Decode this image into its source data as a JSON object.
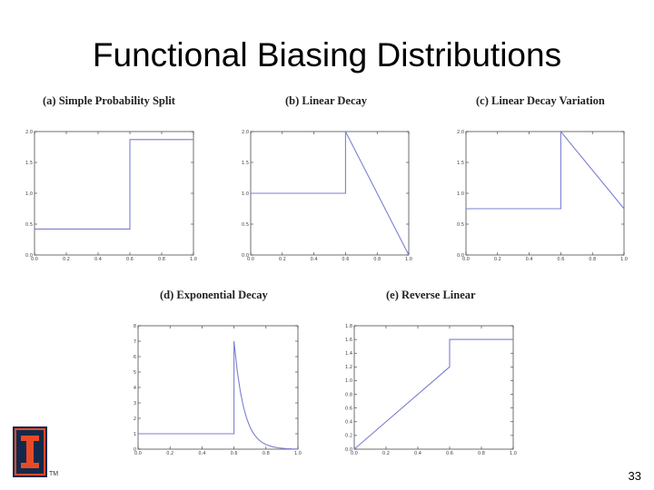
{
  "slide": {
    "title": "Functional Biasing Distributions",
    "page_number": "33",
    "tm": "TM"
  },
  "chart_data": [
    {
      "type": "line",
      "title": "(a) Simple Probability Split",
      "xlim": [
        0,
        1
      ],
      "ylim": [
        0,
        2
      ],
      "xticks": [
        0.0,
        0.2,
        0.4,
        0.6,
        0.8,
        1.0
      ],
      "yticks": [
        0.0,
        0.5,
        1.0,
        1.5,
        2.0
      ],
      "xtick_labels": [
        "0.0",
        "0.2",
        "0.4",
        "0.6",
        "0.8",
        "1.0"
      ],
      "ytick_labels": [
        "0.0",
        "0.5",
        "1.0",
        "1.5",
        "2.0"
      ],
      "series": [
        {
          "x": [
            0,
            0.6,
            0.6,
            1.0
          ],
          "y": [
            0.42,
            0.42,
            1.87,
            1.87
          ]
        }
      ]
    },
    {
      "type": "line",
      "title": "(b) Linear Decay",
      "xlim": [
        0,
        1
      ],
      "ylim": [
        0,
        2
      ],
      "xticks": [
        0.0,
        0.2,
        0.4,
        0.6,
        0.8,
        1.0
      ],
      "yticks": [
        0.0,
        0.5,
        1.0,
        1.5,
        2.0
      ],
      "xtick_labels": [
        "0.0",
        "0.2",
        "0.4",
        "0.6",
        "0.8",
        "1.0"
      ],
      "ytick_labels": [
        "0.0",
        "0.5",
        "1.0",
        "1.5",
        "2.0"
      ],
      "series": [
        {
          "x": [
            0,
            0.6,
            0.6,
            1.0
          ],
          "y": [
            1.0,
            1.0,
            2.0,
            0.0
          ]
        }
      ]
    },
    {
      "type": "line",
      "title": "(c) Linear Decay Variation",
      "xlim": [
        0,
        1
      ],
      "ylim": [
        0,
        2
      ],
      "xticks": [
        0.0,
        0.2,
        0.4,
        0.6,
        0.8,
        1.0
      ],
      "yticks": [
        0.0,
        0.5,
        1.0,
        1.5,
        2.0
      ],
      "xtick_labels": [
        "0.0",
        "0.2",
        "0.4",
        "0.6",
        "0.8",
        "1.0"
      ],
      "ytick_labels": [
        "0.0",
        "0.5",
        "1.0",
        "1.5",
        "2.0"
      ],
      "series": [
        {
          "x": [
            0,
            0.6,
            0.6,
            1.0
          ],
          "y": [
            0.75,
            0.75,
            2.0,
            0.75
          ]
        }
      ]
    },
    {
      "type": "line",
      "title": "(d) Exponential Decay",
      "xlim": [
        0,
        1
      ],
      "ylim": [
        0,
        8
      ],
      "xticks": [
        0.0,
        0.2,
        0.4,
        0.6,
        0.8,
        1.0
      ],
      "yticks": [
        0,
        1,
        2,
        3,
        4,
        5,
        6,
        7,
        8
      ],
      "xtick_labels": [
        "0.0",
        "0.2",
        "0.4",
        "0.6",
        "0.8",
        "1.0"
      ],
      "ytick_labels": [
        "0",
        "1",
        "2",
        "3",
        "4",
        "5",
        "6",
        "7",
        "8"
      ],
      "series": [
        {
          "x": [
            0,
            0.6,
            0.6,
            0.62,
            0.64,
            0.66,
            0.68,
            0.7,
            0.72,
            0.74,
            0.76,
            0.78,
            0.8,
            0.84,
            0.88,
            0.92,
            0.96,
            1.0
          ],
          "y": [
            1.0,
            1.0,
            7.0,
            5.1,
            3.72,
            2.71,
            1.98,
            1.44,
            1.05,
            0.77,
            0.56,
            0.41,
            0.3,
            0.16,
            0.08,
            0.04,
            0.02,
            0.01
          ]
        }
      ]
    },
    {
      "type": "line",
      "title": "(e) Reverse Linear",
      "xlim": [
        0,
        1
      ],
      "ylim": [
        0,
        1.8
      ],
      "xticks": [
        0.0,
        0.2,
        0.4,
        0.6,
        0.8,
        1.0
      ],
      "yticks": [
        0.0,
        0.2,
        0.4,
        0.6,
        0.8,
        1.0,
        1.2,
        1.4,
        1.6,
        1.8
      ],
      "xtick_labels": [
        "0.0",
        "0.2",
        "0.4",
        "0.6",
        "0.8",
        "1.0"
      ],
      "ytick_labels": [
        "0.0",
        "0.2",
        "0.4",
        "0.6",
        "0.8",
        "1.0",
        "1.2",
        "1.4",
        "1.6",
        "1.8"
      ],
      "series": [
        {
          "x": [
            0,
            0.6,
            0.6,
            1.0
          ],
          "y": [
            0.0,
            1.2,
            1.6,
            1.6
          ]
        }
      ]
    }
  ],
  "colors": {
    "line": "#7b7fd0",
    "axis": "#333333",
    "logo_blue": "#13294b",
    "logo_orange": "#e84a27"
  }
}
